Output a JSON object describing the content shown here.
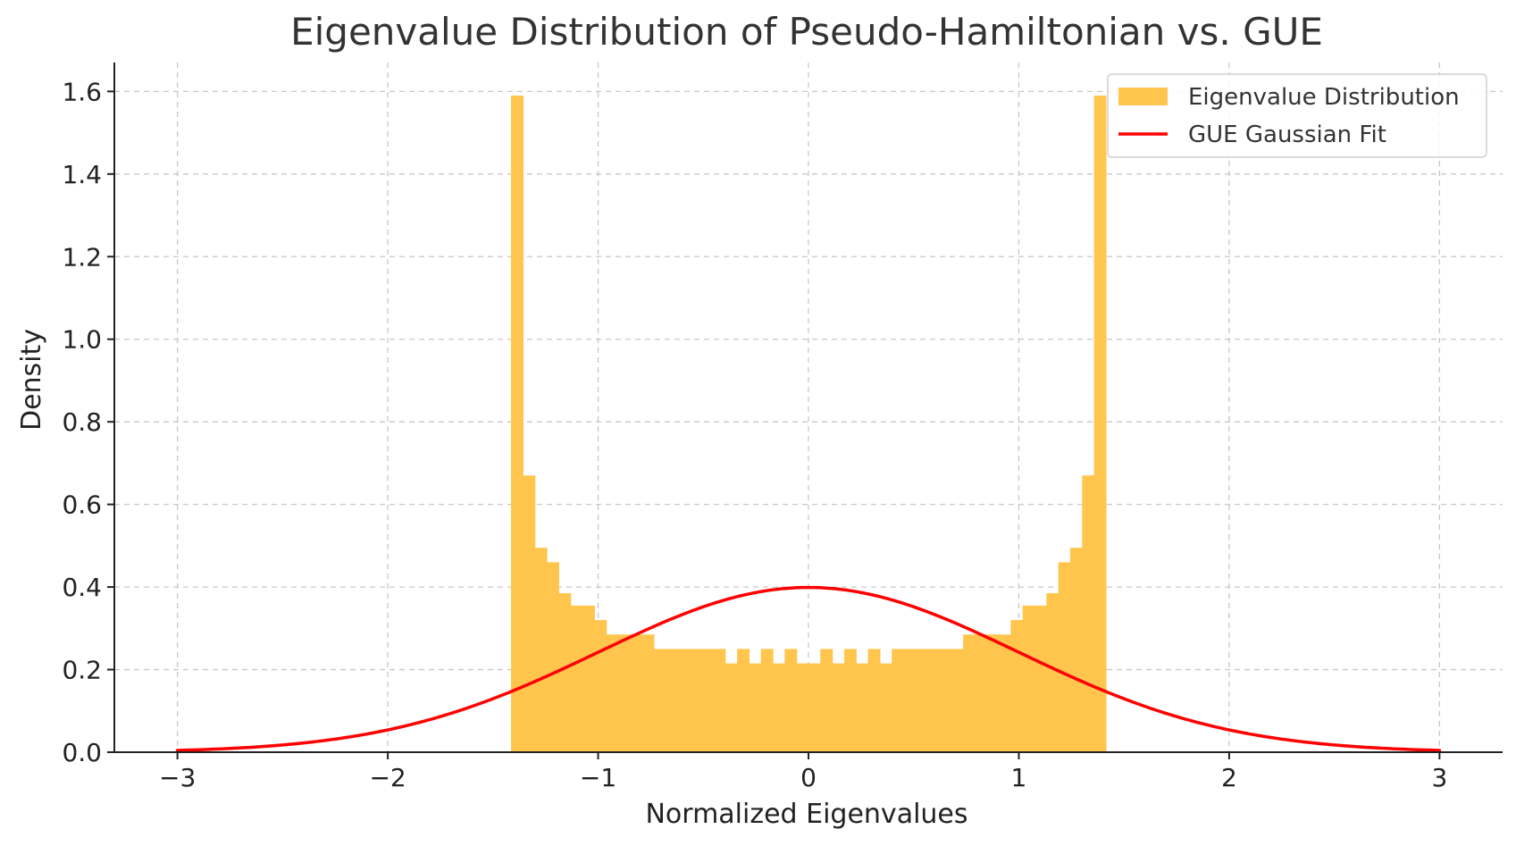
{
  "chart_data": {
    "type": "bar",
    "title": "Eigenvalue Distribution of Pseudo-Hamiltonian vs. GUE",
    "xlabel": "Normalized Eigenvalues",
    "ylabel": "Density",
    "xlim": [
      -3.3,
      3.3
    ],
    "ylim": [
      0,
      1.67
    ],
    "xticks": [
      -3,
      -2,
      -1,
      0,
      1,
      2,
      3
    ],
    "xtick_labels": [
      "−3",
      "−2",
      "−1",
      "0",
      "1",
      "2",
      "3"
    ],
    "yticks": [
      0.0,
      0.2,
      0.4,
      0.6,
      0.8,
      1.0,
      1.2,
      1.4,
      1.6
    ],
    "ytick_labels": [
      "0.0",
      "0.2",
      "0.4",
      "0.6",
      "0.8",
      "1.0",
      "1.2",
      "1.4",
      "1.6"
    ],
    "grid": true,
    "legend_position": "top-right",
    "histogram": {
      "name": "Eigenvalue Distribution",
      "color": "#ffc54d",
      "bin_start": -1.414,
      "bin_end": 1.414,
      "values": [
        1.59,
        0.67,
        0.495,
        0.46,
        0.385,
        0.355,
        0.355,
        0.32,
        0.285,
        0.285,
        0.285,
        0.285,
        0.25,
        0.25,
        0.25,
        0.25,
        0.25,
        0.25,
        0.215,
        0.25,
        0.215,
        0.25,
        0.215,
        0.25,
        0.215,
        0.215,
        0.25,
        0.215,
        0.25,
        0.215,
        0.25,
        0.215,
        0.25,
        0.25,
        0.25,
        0.25,
        0.25,
        0.25,
        0.285,
        0.285,
        0.285,
        0.285,
        0.32,
        0.355,
        0.355,
        0.385,
        0.46,
        0.495,
        0.67,
        1.59
      ]
    },
    "series": [
      {
        "name": "GUE Gaussian Fit",
        "color": "#ff0000",
        "kind": "line",
        "function": "standard_normal_pdf",
        "x_range": [
          -3,
          3
        ]
      }
    ]
  }
}
